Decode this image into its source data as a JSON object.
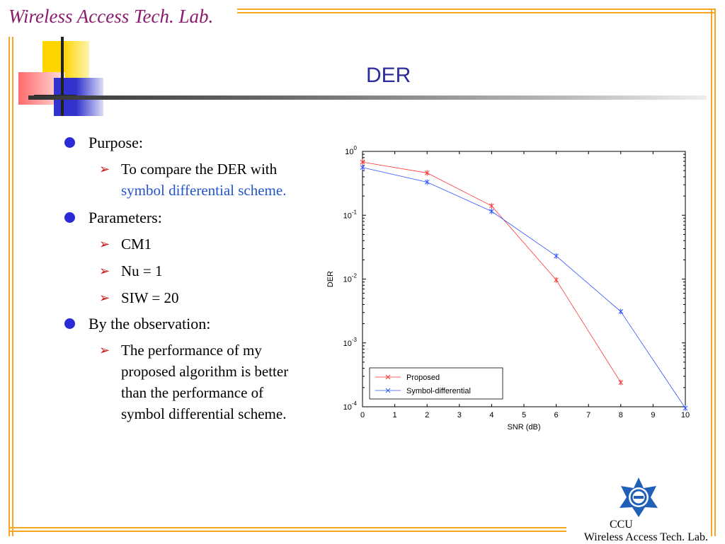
{
  "header": {
    "lab_title": "Wireless Access Tech. Lab."
  },
  "slide": {
    "title": "DER"
  },
  "bullets": [
    {
      "label": "Purpose:",
      "subs": [
        "To compare the DER with",
        "symbol differential scheme."
      ]
    },
    {
      "label": "Parameters:",
      "subs": [
        "CM1",
        "Nu = 1",
        "SIW = 20"
      ]
    },
    {
      "label": "By the observation:",
      "subs": [
        "The performance of my proposed algorithm is better than the performance of symbol differential scheme."
      ]
    }
  ],
  "footer": {
    "org": "CCU",
    "lab": "Wireless Access Tech. Lab."
  },
  "colors": {
    "frame": "#f5a623",
    "title": "#2c2c9e",
    "lab_title": "#8b1a6e",
    "bullet": "#2a2ad6",
    "arrow": "#cc1111"
  },
  "chart_data": {
    "type": "line",
    "title": "",
    "xlabel": "SNR (dB)",
    "ylabel": "DER",
    "xlim": [
      0,
      10
    ],
    "ylim": [
      0.0001,
      1
    ],
    "yscale": "log",
    "xticks": [
      "0",
      "1",
      "2",
      "3",
      "4",
      "5",
      "6",
      "7",
      "8",
      "9",
      "10"
    ],
    "yticks": [
      {
        "base": "10",
        "exp": "0",
        "value": 1
      },
      {
        "base": "10",
        "exp": "-1",
        "value": 0.1
      },
      {
        "base": "10",
        "exp": "-2",
        "value": 0.01
      },
      {
        "base": "10",
        "exp": "-3",
        "value": 0.001
      },
      {
        "base": "10",
        "exp": "-4",
        "value": 0.0001
      }
    ],
    "legend_position": "bottom-left",
    "series": [
      {
        "name": "Proposed",
        "color": "#ff3333",
        "x": [
          0,
          2,
          4,
          6,
          8
        ],
        "y": [
          0.68,
          0.46,
          0.14,
          0.0097,
          0.00024
        ]
      },
      {
        "name": "Symbol-differential",
        "color": "#3355ff",
        "x": [
          0,
          2,
          4,
          6,
          8,
          10
        ],
        "y": [
          0.56,
          0.33,
          0.115,
          0.023,
          0.0031,
          9.5e-05
        ]
      }
    ]
  }
}
